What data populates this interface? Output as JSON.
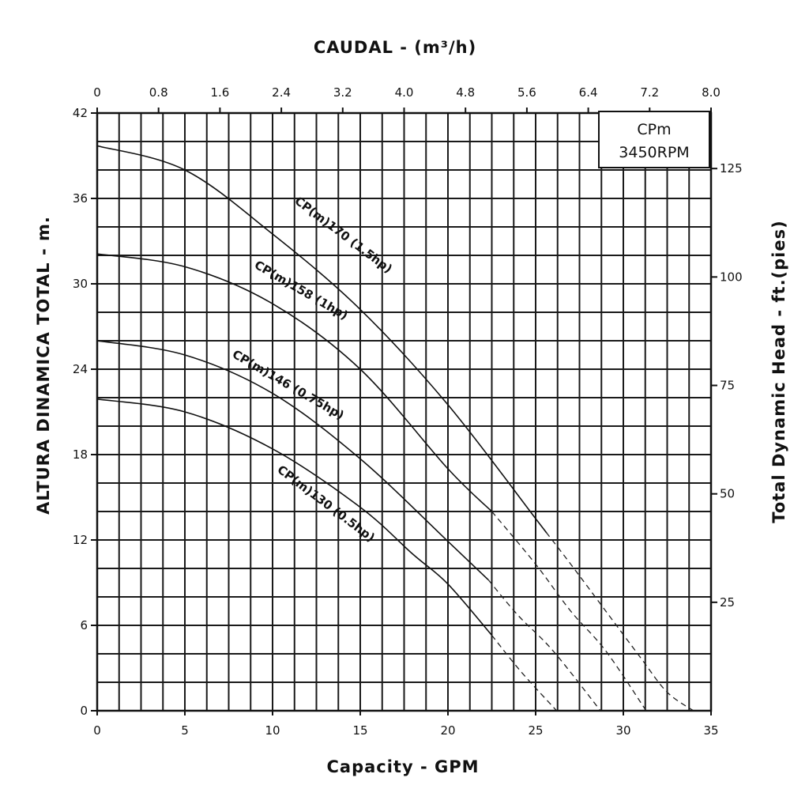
{
  "chart_data": {
    "type": "line",
    "title": "",
    "legend_box": {
      "line1": "CPm",
      "line2": "3450RPM",
      "placement": "top-right"
    },
    "x_bottom": {
      "label": "Capacity - GPM",
      "lim": [
        0,
        35
      ],
      "ticks": [
        0,
        5,
        10,
        15,
        20,
        25,
        30,
        35
      ],
      "tick_labels": [
        "0",
        "5",
        "10",
        "15",
        "20",
        "25",
        "30",
        "35"
      ]
    },
    "x_top": {
      "label": "CAUDAL - (m³/h)",
      "lim": [
        0,
        8.0
      ],
      "ticks": [
        0,
        0.8,
        1.6,
        2.4,
        3.2,
        4.0,
        4.8,
        5.6,
        6.4,
        7.2,
        8.0
      ],
      "tick_labels": [
        "0",
        "0.8",
        "1.6",
        "2.4",
        "3.2",
        "4.0",
        "4.8",
        "5.6",
        "6.4",
        "7.2",
        "8.0"
      ]
    },
    "y_left": {
      "label": "ALTURA DINAMICA TOTAL - m.",
      "lim": [
        0,
        42
      ],
      "ticks": [
        0,
        6,
        12,
        18,
        24,
        30,
        36,
        42
      ],
      "tick_labels": [
        "0",
        "6",
        "12",
        "18",
        "24",
        "30",
        "36",
        "42"
      ]
    },
    "y_right": {
      "label": "Total Dynamic Head - ft.(pies)",
      "ticks": [
        25,
        50,
        75,
        100,
        125
      ],
      "tick_labels": [
        "25",
        "50",
        "75",
        "100",
        "125"
      ]
    },
    "grid": true,
    "grid_x_step_gpm": 1.25,
    "grid_y_step_m": 2,
    "series": [
      {
        "name": "CP(m)170 (1.5hp)",
        "x": [
          0,
          5,
          10,
          15,
          20,
          25,
          27,
          29,
          31,
          32.5,
          34
        ],
        "y": [
          39.7,
          38.0,
          33.5,
          28.2,
          21.5,
          13.5,
          10.3,
          7.0,
          3.7,
          1.3,
          0
        ],
        "solid_until_x": 25.6
      },
      {
        "name": "CP(m)158 (1hp)",
        "x": [
          0,
          5,
          10,
          15,
          20,
          22.5,
          25,
          27,
          29,
          31.3
        ],
        "y": [
          32.1,
          31.2,
          28.6,
          24.0,
          17.0,
          14.0,
          10.3,
          7.0,
          4.2,
          0
        ],
        "solid_until_x": 22.5
      },
      {
        "name": "CP(m)146 (0.75hp)",
        "x": [
          0,
          5,
          10,
          15,
          20,
          22.3,
          24,
          26,
          28.7
        ],
        "y": [
          26.0,
          25.0,
          22.3,
          17.7,
          11.9,
          9.2,
          6.7,
          4.2,
          0
        ],
        "solid_until_x": 22.3
      },
      {
        "name": "CP(m)130 (0.5hp)",
        "x": [
          0,
          5,
          10,
          15,
          18,
          20,
          22.5,
          24.2,
          26.2
        ],
        "y": [
          21.9,
          21.0,
          18.4,
          14.3,
          11.0,
          8.9,
          5.3,
          2.7,
          0
        ],
        "solid_until_x": 22.5
      }
    ]
  }
}
